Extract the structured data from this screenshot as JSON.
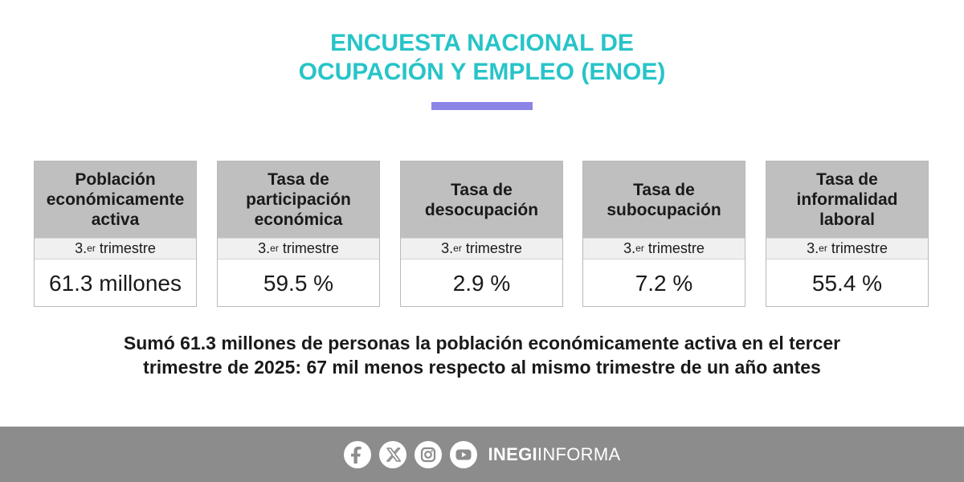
{
  "header": {
    "title_line1": "ENCUESTA NACIONAL DE",
    "title_line2": "OCUPACIÓN Y EMPLEO (ENOE)",
    "accent_color": "#27c4c8",
    "bar_color": "#8a85e6"
  },
  "cards": [
    {
      "title_lines": [
        "Población",
        "económicamente",
        "activa"
      ],
      "period_prefix": "3.",
      "period_sup": "er",
      "period_suffix": " trimestre",
      "value": "61.3 millones"
    },
    {
      "title_lines": [
        "Tasa de",
        "participación",
        "económica"
      ],
      "period_prefix": "3.",
      "period_sup": "er",
      "period_suffix": " trimestre",
      "value": "59.5 %"
    },
    {
      "title_lines": [
        "Tasa de",
        "desocupación"
      ],
      "period_prefix": "3.",
      "period_sup": "er",
      "period_suffix": " trimestre",
      "value": "2.9 %"
    },
    {
      "title_lines": [
        "Tasa de",
        "subocupación"
      ],
      "period_prefix": "3.",
      "period_sup": "er",
      "period_suffix": " trimestre",
      "value": "7.2 %"
    },
    {
      "title_lines": [
        "Tasa de",
        "informalidad",
        "laboral"
      ],
      "period_prefix": "3.",
      "period_sup": "er",
      "period_suffix": " trimestre",
      "value": "55.4 %"
    }
  ],
  "summary": {
    "line1": "Sumó 61.3 millones de personas la población económicamente activa en el tercer",
    "line2": "trimestre de 2025: 67 mil menos respecto al mismo trimestre de un año antes"
  },
  "footer": {
    "social_icons": [
      "facebook-icon",
      "x-icon",
      "instagram-icon",
      "youtube-icon"
    ],
    "brand_bold": "INEGI",
    "brand_regular": "INFORMA",
    "background_color": "#8c8c8c"
  }
}
